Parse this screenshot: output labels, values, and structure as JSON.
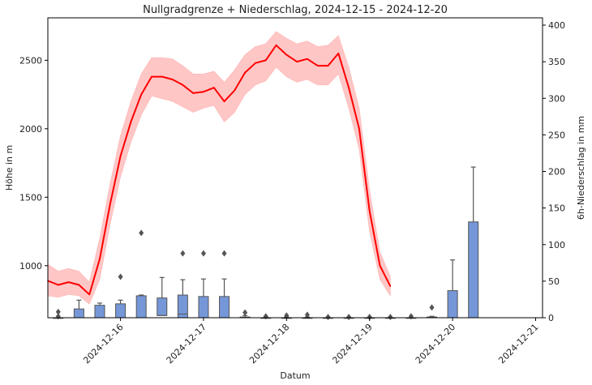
{
  "chart_data": {
    "type": "line",
    "title": "Nullgradgrenze + Niederschlag, 2024-12-15 - 2024-12-20",
    "xlabel": "Datum",
    "ylabel_left": "Höhe in m",
    "ylabel_right": "6h-Niederschlag in mm",
    "x_ticks": [
      "2024-12-16",
      "2024-12-17",
      "2024-12-18",
      "2024-12-19",
      "2024-12-20",
      "2024-12-21"
    ],
    "x_range": [
      "2024-12-15T03:00",
      "2024-12-21T02:00"
    ],
    "ylim_left": [
      620,
      2810
    ],
    "y_ticks_left": [
      1000,
      1500,
      2000,
      2500
    ],
    "ylim_right": [
      0,
      410
    ],
    "y_ticks_right": [
      0,
      50,
      100,
      150,
      200,
      250,
      300,
      350,
      400
    ],
    "series": [
      {
        "kind": "line-with-band",
        "color": "#ff0000",
        "band_color": "#ffb3b3",
        "points": [
          {
            "t": "2024-12-15T03:00",
            "median": 890,
            "low": 780,
            "high": 1010
          },
          {
            "t": "2024-12-15T06:00",
            "median": 860,
            "low": 770,
            "high": 960
          },
          {
            "t": "2024-12-15T09:00",
            "median": 880,
            "low": 790,
            "high": 980
          },
          {
            "t": "2024-12-15T12:00",
            "median": 860,
            "low": 780,
            "high": 960
          },
          {
            "t": "2024-12-15T15:00",
            "median": 790,
            "low": 720,
            "high": 880
          },
          {
            "t": "2024-12-15T18:00",
            "median": 1050,
            "low": 900,
            "high": 1200
          },
          {
            "t": "2024-12-15T21:00",
            "median": 1450,
            "low": 1300,
            "high": 1600
          },
          {
            "t": "2024-12-16T00:00",
            "median": 1800,
            "low": 1650,
            "high": 1950
          },
          {
            "t": "2024-12-16T03:00",
            "median": 2050,
            "low": 1900,
            "high": 2200
          },
          {
            "t": "2024-12-16T06:00",
            "median": 2250,
            "low": 2100,
            "high": 2400
          },
          {
            "t": "2024-12-16T09:00",
            "median": 2380,
            "low": 2240,
            "high": 2520
          },
          {
            "t": "2024-12-16T12:00",
            "median": 2380,
            "low": 2220,
            "high": 2520
          },
          {
            "t": "2024-12-16T15:00",
            "median": 2360,
            "low": 2200,
            "high": 2510
          },
          {
            "t": "2024-12-16T18:00",
            "median": 2320,
            "low": 2160,
            "high": 2460
          },
          {
            "t": "2024-12-16T21:00",
            "median": 2260,
            "low": 2120,
            "high": 2400
          },
          {
            "t": "2024-12-17T00:00",
            "median": 2270,
            "low": 2150,
            "high": 2400
          },
          {
            "t": "2024-12-17T03:00",
            "median": 2300,
            "low": 2170,
            "high": 2420
          },
          {
            "t": "2024-12-17T06:00",
            "median": 2200,
            "low": 2050,
            "high": 2340
          },
          {
            "t": "2024-12-17T09:00",
            "median": 2280,
            "low": 2120,
            "high": 2430
          },
          {
            "t": "2024-12-17T12:00",
            "median": 2410,
            "low": 2250,
            "high": 2540
          },
          {
            "t": "2024-12-17T15:00",
            "median": 2480,
            "low": 2320,
            "high": 2600
          },
          {
            "t": "2024-12-17T18:00",
            "median": 2500,
            "low": 2350,
            "high": 2620
          },
          {
            "t": "2024-12-17T21:00",
            "median": 2610,
            "low": 2450,
            "high": 2710
          },
          {
            "t": "2024-12-18T00:00",
            "median": 2540,
            "low": 2380,
            "high": 2660
          },
          {
            "t": "2024-12-18T03:00",
            "median": 2490,
            "low": 2340,
            "high": 2620
          },
          {
            "t": "2024-12-18T06:00",
            "median": 2510,
            "low": 2360,
            "high": 2640
          },
          {
            "t": "2024-12-18T09:00",
            "median": 2460,
            "low": 2320,
            "high": 2600
          },
          {
            "t": "2024-12-18T12:00",
            "median": 2460,
            "low": 2320,
            "high": 2610
          },
          {
            "t": "2024-12-18T15:00",
            "median": 2550,
            "low": 2400,
            "high": 2680
          },
          {
            "t": "2024-12-18T18:00",
            "median": 2300,
            "low": 2150,
            "high": 2450
          },
          {
            "t": "2024-12-18T21:00",
            "median": 2000,
            "low": 1850,
            "high": 2150
          },
          {
            "t": "2024-12-19T00:00",
            "median": 1400,
            "low": 1250,
            "high": 1550
          },
          {
            "t": "2024-12-19T03:00",
            "median": 1000,
            "low": 900,
            "high": 1100
          },
          {
            "t": "2024-12-19T06:00",
            "median": 850,
            "low": 780,
            "high": 920
          }
        ]
      }
    ],
    "precip_boxes": [
      {
        "t": "2024-12-15T06:00",
        "q1": 0,
        "med": 0,
        "q3": 0,
        "wlo": 0,
        "whi": 0,
        "fliers": [
          2,
          8
        ]
      },
      {
        "t": "2024-12-15T12:00",
        "q1": 0,
        "med": 0,
        "q3": 12,
        "wlo": 0,
        "whi": 24,
        "fliers": []
      },
      {
        "t": "2024-12-15T18:00",
        "q1": 0,
        "med": 0,
        "q3": 17,
        "wlo": 0,
        "whi": 20,
        "fliers": []
      },
      {
        "t": "2024-12-16T00:00",
        "q1": 0,
        "med": 0,
        "q3": 19,
        "wlo": 0,
        "whi": 24,
        "fliers": [
          56
        ]
      },
      {
        "t": "2024-12-16T06:00",
        "q1": 0,
        "med": 0,
        "q3": 30,
        "wlo": 0,
        "whi": 31,
        "fliers": [
          116
        ]
      },
      {
        "t": "2024-12-16T12:00",
        "q1": 3,
        "med": 3,
        "q3": 27,
        "wlo": 0,
        "whi": 55,
        "fliers": []
      },
      {
        "t": "2024-12-16T18:00",
        "q1": 0,
        "med": 5,
        "q3": 31,
        "wlo": 0,
        "whi": 52,
        "fliers": [
          88
        ]
      },
      {
        "t": "2024-12-17T00:00",
        "q1": 0,
        "med": 0,
        "q3": 29,
        "wlo": 0,
        "whi": 53,
        "fliers": [
          88
        ]
      },
      {
        "t": "2024-12-17T06:00",
        "q1": 0,
        "med": 0,
        "q3": 29,
        "wlo": 0,
        "whi": 53,
        "fliers": [
          88
        ]
      },
      {
        "t": "2024-12-17T12:00",
        "q1": 0,
        "med": 0,
        "q3": 1,
        "wlo": 0,
        "whi": 3,
        "fliers": [
          7
        ]
      },
      {
        "t": "2024-12-17T18:00",
        "q1": 0,
        "med": 0,
        "q3": 0,
        "wlo": 0,
        "whi": 1,
        "fliers": [
          2
        ]
      },
      {
        "t": "2024-12-18T00:00",
        "q1": 0,
        "med": 0,
        "q3": 0,
        "wlo": 0,
        "whi": 1,
        "fliers": [
          3
        ]
      },
      {
        "t": "2024-12-18T06:00",
        "q1": 0,
        "med": 0,
        "q3": 0,
        "wlo": 0,
        "whi": 1,
        "fliers": [
          4
        ]
      },
      {
        "t": "2024-12-18T12:00",
        "q1": 0,
        "med": 0,
        "q3": 0,
        "wlo": 0,
        "whi": 0,
        "fliers": [
          1
        ]
      },
      {
        "t": "2024-12-18T18:00",
        "q1": 0,
        "med": 0,
        "q3": 0,
        "wlo": 0,
        "whi": 0,
        "fliers": [
          1
        ]
      },
      {
        "t": "2024-12-19T00:00",
        "q1": 0,
        "med": 0,
        "q3": 0,
        "wlo": 0,
        "whi": 0,
        "fliers": [
          1
        ]
      },
      {
        "t": "2024-12-19T06:00",
        "q1": 0,
        "med": 0,
        "q3": 0,
        "wlo": 0,
        "whi": 0,
        "fliers": [
          1
        ]
      },
      {
        "t": "2024-12-19T12:00",
        "q1": 0,
        "med": 0,
        "q3": 0,
        "wlo": 0,
        "whi": 0,
        "fliers": [
          2
        ]
      },
      {
        "t": "2024-12-19T18:00",
        "q1": 0,
        "med": 0,
        "q3": 1,
        "wlo": 0,
        "whi": 2,
        "fliers": [
          14
        ]
      },
      {
        "t": "2024-12-20T00:00",
        "q1": 0,
        "med": 0,
        "q3": 37,
        "wlo": 0,
        "whi": 79,
        "fliers": []
      },
      {
        "t": "2024-12-20T06:00",
        "q1": 0,
        "med": 0,
        "q3": 131,
        "wlo": 0,
        "whi": 206,
        "fliers": []
      }
    ],
    "box_color": "#7597d8",
    "grid": false,
    "legend": "none"
  }
}
